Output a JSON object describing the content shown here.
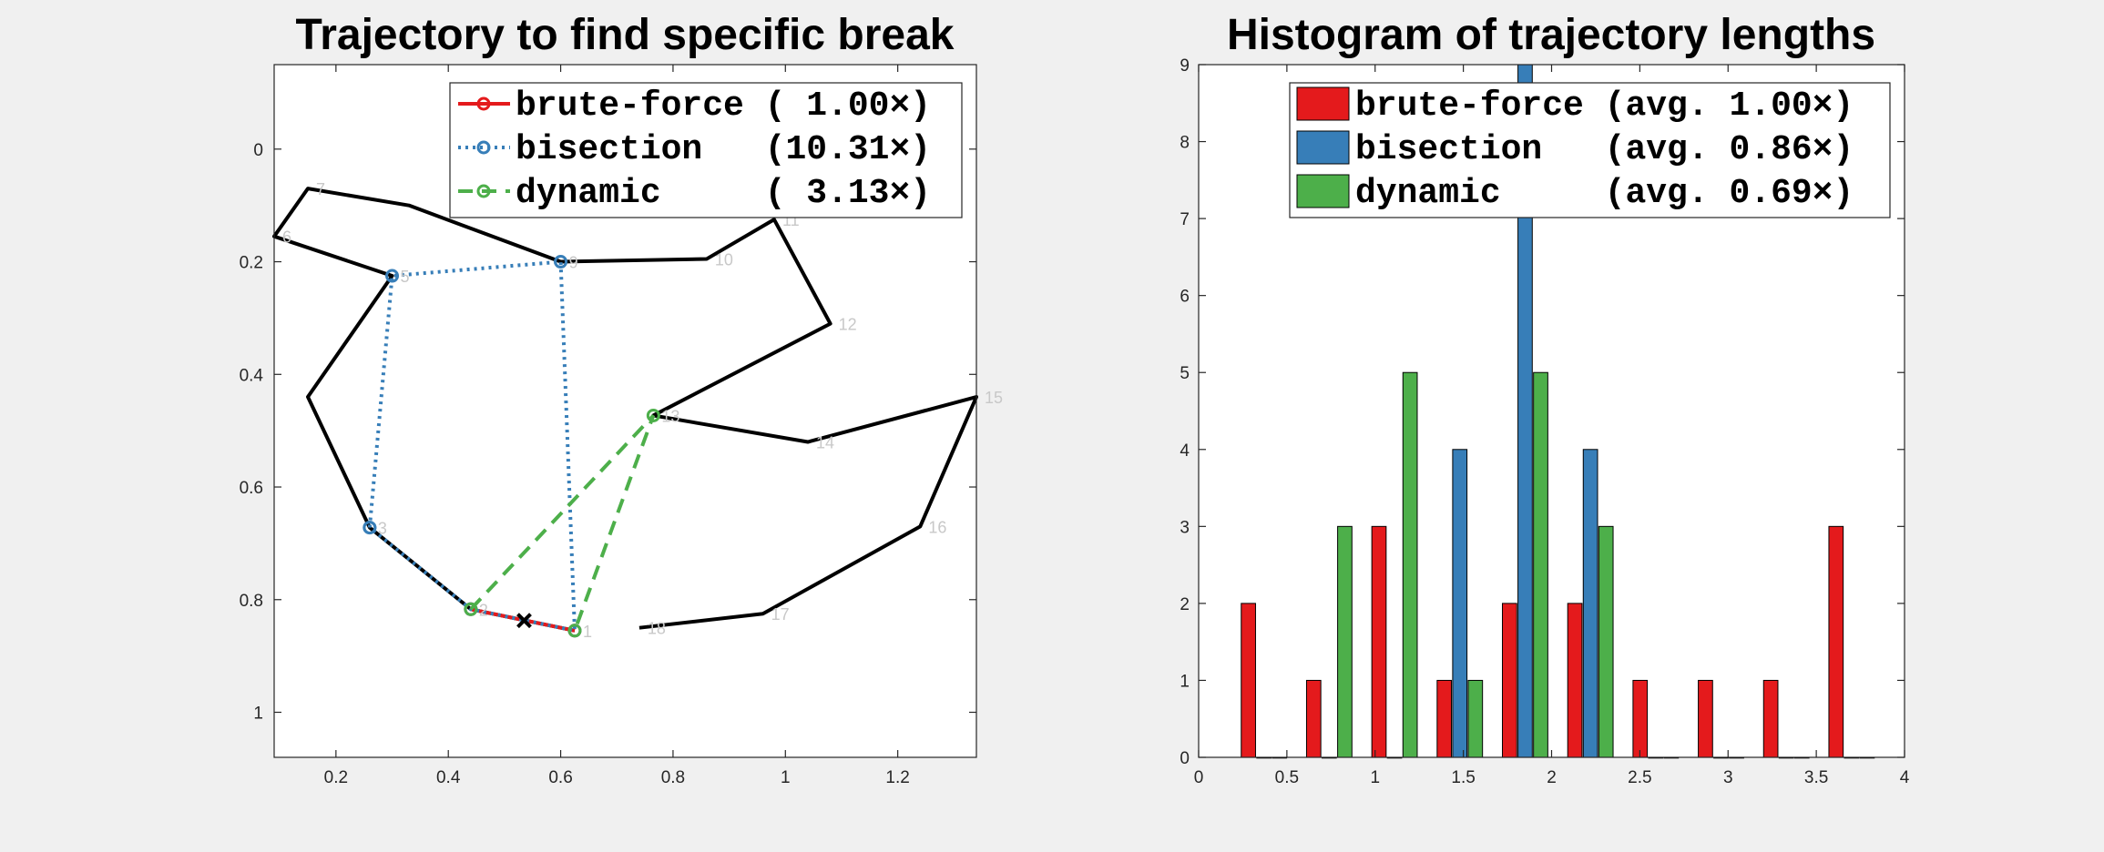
{
  "chart_data": [
    {
      "type": "line",
      "title": "Trajectory to find specific break",
      "xlim": [
        0.09,
        1.34
      ],
      "ylim": [
        1.08,
        -0.15
      ],
      "y_reversed": true,
      "xticks": [
        "0.2",
        "0.4",
        "0.6",
        "0.8",
        "1",
        "1.2"
      ],
      "yticks": [
        "0",
        "0.2",
        "0.4",
        "0.6",
        "0.8",
        "1"
      ],
      "xtick_values": [
        0.2,
        0.4,
        0.6,
        0.8,
        1.0,
        1.2
      ],
      "ytick_values": [
        0,
        0.2,
        0.4,
        0.6,
        0.8,
        1.0
      ],
      "grid": false,
      "legend_position": "top-right",
      "path": {
        "color": "#000000",
        "points": [
          [
            0.625,
            0.855
          ],
          [
            0.44,
            0.817
          ],
          [
            0.26,
            0.672
          ],
          [
            0.15,
            0.44
          ],
          [
            0.3,
            0.225
          ],
          [
            0.09,
            0.155
          ],
          [
            0.15,
            0.07
          ],
          [
            0.33,
            0.1
          ],
          [
            0.6,
            0.2
          ],
          [
            0.86,
            0.195
          ],
          [
            0.98,
            0.125
          ],
          [
            1.08,
            0.31
          ],
          [
            0.765,
            0.473
          ],
          [
            1.04,
            0.52
          ],
          [
            1.34,
            0.44
          ],
          [
            1.24,
            0.67
          ],
          [
            0.96,
            0.825
          ],
          [
            0.74,
            0.85
          ]
        ]
      },
      "node_labels": [
        {
          "text": "1",
          "x": 0.625,
          "y": 0.855
        },
        {
          "text": "2",
          "x": 0.44,
          "y": 0.817
        },
        {
          "text": "3",
          "x": 0.26,
          "y": 0.672
        },
        {
          "text": "5",
          "x": 0.3,
          "y": 0.225
        },
        {
          "text": "6",
          "x": 0.09,
          "y": 0.155
        },
        {
          "text": "7",
          "x": 0.15,
          "y": 0.07
        },
        {
          "text": "9",
          "x": 0.6,
          "y": 0.2
        },
        {
          "text": "10",
          "x": 0.86,
          "y": 0.195
        },
        {
          "text": "11",
          "x": 0.98,
          "y": 0.125
        },
        {
          "text": "12",
          "x": 1.08,
          "y": 0.31
        },
        {
          "text": "13",
          "x": 0.765,
          "y": 0.473
        },
        {
          "text": "14",
          "x": 1.04,
          "y": 0.52
        },
        {
          "text": "15",
          "x": 1.34,
          "y": 0.44
        },
        {
          "text": "16",
          "x": 1.24,
          "y": 0.67
        },
        {
          "text": "17",
          "x": 0.96,
          "y": 0.825
        },
        {
          "text": "18",
          "x": 0.74,
          "y": 0.85
        }
      ],
      "break_marker": {
        "x": 0.535,
        "y": 0.837
      },
      "series": [
        {
          "name": "brute-force",
          "legend": "brute-force ( 1.00×)",
          "color": "#e41a1c",
          "style": "solid",
          "points": [
            [
              0.44,
              0.817
            ],
            [
              0.625,
              0.855
            ]
          ]
        },
        {
          "name": "bisection",
          "legend": "bisection   (10.31×)",
          "color": "#377eb8",
          "style": "dotted",
          "points": [
            [
              0.26,
              0.672
            ],
            [
              0.3,
              0.225
            ],
            [
              0.6,
              0.2
            ],
            [
              0.625,
              0.855
            ],
            [
              0.44,
              0.817
            ],
            [
              0.26,
              0.672
            ]
          ]
        },
        {
          "name": "dynamic",
          "legend": "dynamic     ( 3.13×)",
          "color": "#4daf4a",
          "style": "dashed",
          "points": [
            [
              0.44,
              0.817
            ],
            [
              0.765,
              0.473
            ],
            [
              0.625,
              0.855
            ]
          ]
        }
      ]
    },
    {
      "type": "bar",
      "title": "Histogram of trajectory lengths",
      "xlim": [
        0,
        4
      ],
      "ylim": [
        0,
        9
      ],
      "xticks": [
        "0",
        "0.5",
        "1",
        "1.5",
        "2",
        "2.5",
        "3",
        "3.5",
        "4"
      ],
      "yticks": [
        "0",
        "1",
        "2",
        "3",
        "4",
        "5",
        "6",
        "7",
        "8",
        "9"
      ],
      "xtick_values": [
        0,
        0.5,
        1,
        1.5,
        2,
        2.5,
        3,
        3.5,
        4
      ],
      "ytick_values": [
        0,
        1,
        2,
        3,
        4,
        5,
        6,
        7,
        8,
        9
      ],
      "grid": false,
      "legend_position": "top",
      "bin_centers": [
        0.37,
        0.74,
        1.11,
        1.48,
        1.85,
        2.22,
        2.59,
        2.96,
        3.33,
        3.7
      ],
      "bin_width": 0.37,
      "series": [
        {
          "name": "brute-force",
          "legend": "brute-force (avg. 1.00×)",
          "color": "#e41a1c",
          "values": [
            2,
            1,
            3,
            1,
            2,
            2,
            1,
            1,
            1,
            3
          ]
        },
        {
          "name": "bisection",
          "legend": "bisection   (avg. 0.86×)",
          "color": "#377eb8",
          "values": [
            0,
            0,
            0,
            4,
            9,
            4,
            0,
            0,
            0,
            0
          ]
        },
        {
          "name": "dynamic",
          "legend": "dynamic     (avg. 0.69×)",
          "color": "#4daf4a",
          "values": [
            0,
            3,
            5,
            1,
            5,
            3,
            0,
            0,
            0,
            0
          ]
        }
      ]
    }
  ]
}
